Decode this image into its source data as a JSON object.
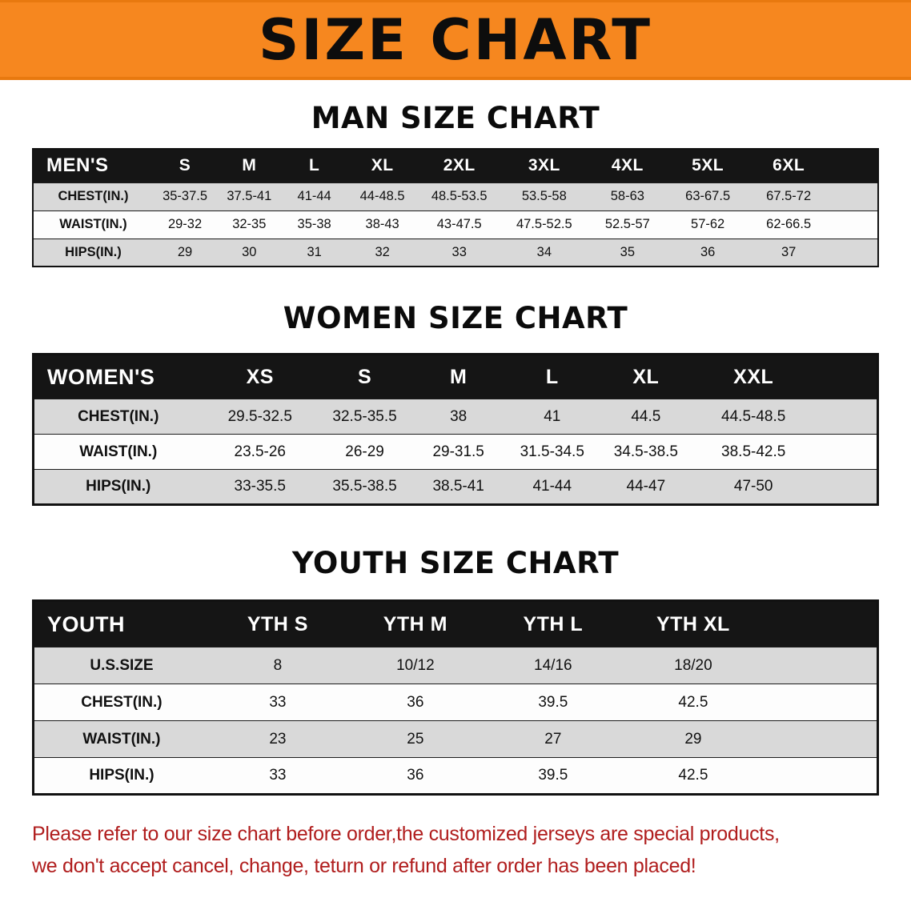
{
  "banner": {
    "title": "SIZE CHART"
  },
  "colors": {
    "banner_bg": "#f6871f",
    "table_header_bg": "#151515",
    "row_alt_bg": "#d9d9d9",
    "disclaimer_text": "#b01d1d"
  },
  "men": {
    "heading": "MAN SIZE CHART",
    "table": {
      "header": [
        "MEN'S",
        "S",
        "M",
        "L",
        "XL",
        "2XL",
        "3XL",
        "4XL",
        "5XL",
        "6XL"
      ],
      "rows": [
        [
          "CHEST(IN.)",
          "35-37.5",
          "37.5-41",
          "41-44",
          "44-48.5",
          "48.5-53.5",
          "53.5-58",
          "58-63",
          "63-67.5",
          "67.5-72"
        ],
        [
          "WAIST(IN.)",
          "29-32",
          "32-35",
          "35-38",
          "38-43",
          "43-47.5",
          "47.5-52.5",
          "52.5-57",
          "57-62",
          "62-66.5"
        ],
        [
          "HIPS(IN.)",
          "29",
          "30",
          "31",
          "32",
          "33",
          "34",
          "35",
          "36",
          "37"
        ]
      ]
    }
  },
  "women": {
    "heading": "WOMEN SIZE CHART",
    "table": {
      "header": [
        "WOMEN'S",
        "XS",
        "S",
        "M",
        "L",
        "XL",
        "XXL"
      ],
      "rows": [
        [
          "CHEST(IN.)",
          "29.5-32.5",
          "32.5-35.5",
          "38",
          "41",
          "44.5",
          "44.5-48.5"
        ],
        [
          "WAIST(IN.)",
          "23.5-26",
          "26-29",
          "29-31.5",
          "31.5-34.5",
          "34.5-38.5",
          "38.5-42.5"
        ],
        [
          "HIPS(IN.)",
          "33-35.5",
          "35.5-38.5",
          "38.5-41",
          "41-44",
          "44-47",
          "47-50"
        ]
      ]
    }
  },
  "youth": {
    "heading": "YOUTH SIZE CHART",
    "table": {
      "header": [
        "YOUTH",
        "YTH S",
        "YTH M",
        "YTH L",
        "YTH XL"
      ],
      "rows": [
        [
          "U.S.SIZE",
          "8",
          "10/12",
          "14/16",
          "18/20"
        ],
        [
          "CHEST(IN.)",
          "33",
          "36",
          "39.5",
          "42.5"
        ],
        [
          "WAIST(IN.)",
          "23",
          "25",
          "27",
          "29"
        ],
        [
          "HIPS(IN.)",
          "33",
          "36",
          "39.5",
          "42.5"
        ]
      ]
    }
  },
  "disclaimer": {
    "line1": "Please refer to our size chart before order,the customized jerseys are special products,",
    "line2": "we don't accept cancel, change, teturn or refund after order has been placed!"
  }
}
